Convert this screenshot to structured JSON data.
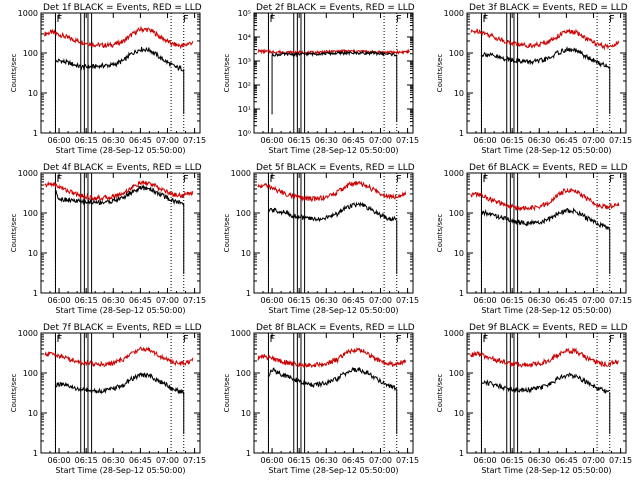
{
  "chart_data": [
    {
      "type": "line",
      "title": "Det 1f BLACK = Events, RED = LLD",
      "scale": "log",
      "ylim": [
        1,
        1000
      ],
      "yticks": [
        "1",
        "10",
        "100",
        "1000"
      ],
      "xticks": [
        "06:00",
        "06:15",
        "06:30",
        "06:45",
        "07:00",
        "07:15"
      ],
      "xlabel": "Start Time (28-Sep-12 05:50:00)",
      "ylabel": "Counts/sec",
      "grid": false,
      "series": [
        {
          "color": "#cc0000",
          "x": [
            2,
            6,
            10,
            16,
            22,
            28,
            34,
            40,
            46,
            50,
            55,
            60,
            66,
            72,
            78,
            84
          ],
          "y": [
            300,
            330,
            290,
            230,
            190,
            165,
            155,
            160,
            200,
            280,
            390,
            380,
            250,
            170,
            150,
            185
          ]
        },
        {
          "color": "#000000",
          "x": [
            8,
            10,
            16,
            22,
            28,
            34,
            40,
            46,
            50,
            55,
            60,
            66,
            72,
            76,
            79
          ],
          "y": [
            60,
            65,
            55,
            45,
            45,
            48,
            50,
            65,
            95,
            125,
            120,
            75,
            50,
            42,
            40
          ]
        }
      ],
      "vlines": [
        8,
        22,
        24,
        26,
        28
      ],
      "dotted": [
        8,
        72,
        79
      ],
      "flags": [
        {
          "x": 8,
          "t": "F"
        },
        {
          "x": 78,
          "t": "F"
        }
      ]
    },
    {
      "type": "line",
      "title": "Det 2f BLACK = Events, RED = LLD",
      "scale": "log",
      "ylim": [
        1,
        100000
      ],
      "yticks": [
        "10⁰",
        "10¹",
        "10²",
        "10³",
        "10⁴",
        "10⁵"
      ],
      "xticks": [
        "06:00",
        "06:15",
        "06:30",
        "06:45",
        "07:00",
        "07:15"
      ],
      "xlabel": "Start Time (28-Sep-12 05:50:00)",
      "ylabel": "Counts/sec",
      "grid": false,
      "series": [
        {
          "color": "#cc0000",
          "x": [
            2,
            10,
            20,
            30,
            40,
            50,
            60,
            70,
            80,
            86
          ],
          "y": [
            2600,
            2400,
            2300,
            2200,
            2400,
            2600,
            2500,
            2300,
            2300,
            2500
          ]
        },
        {
          "color": "#000000",
          "x": [
            10,
            16,
            22,
            28,
            34,
            40,
            46,
            50,
            55,
            60,
            66,
            72,
            76,
            79
          ],
          "y": [
            1800,
            1900,
            1900,
            1950,
            2000,
            2050,
            2100,
            2150,
            2150,
            2150,
            2100,
            2000,
            1900,
            1800
          ]
        }
      ],
      "vlines": [
        8,
        22,
        24,
        26,
        28
      ],
      "dotted": [
        8,
        72,
        79
      ],
      "flags": [
        {
          "x": 8,
          "t": "F"
        },
        {
          "x": 78,
          "t": "F"
        }
      ]
    },
    {
      "type": "line",
      "title": "Det 3f BLACK = Events, RED = LLD",
      "scale": "log",
      "ylim": [
        1,
        1000
      ],
      "yticks": [
        "1",
        "10",
        "100",
        "1000"
      ],
      "xticks": [
        "06:00",
        "06:15",
        "06:30",
        "06:45",
        "07:00",
        "07:15"
      ],
      "xlabel": "Start Time (28-Sep-12 05:50:00)",
      "ylabel": "Counts/sec",
      "grid": false,
      "series": [
        {
          "color": "#cc0000",
          "x": [
            2,
            6,
            10,
            16,
            22,
            28,
            34,
            40,
            46,
            50,
            55,
            60,
            66,
            72,
            78,
            84
          ],
          "y": [
            330,
            360,
            310,
            240,
            190,
            165,
            155,
            160,
            200,
            260,
            340,
            330,
            230,
            160,
            140,
            180
          ]
        },
        {
          "color": "#000000",
          "x": [
            8,
            10,
            16,
            22,
            28,
            34,
            40,
            46,
            50,
            55,
            60,
            66,
            72,
            76,
            79
          ],
          "y": [
            90,
            95,
            80,
            70,
            65,
            60,
            62,
            75,
            100,
            120,
            115,
            80,
            58,
            50,
            45
          ]
        }
      ],
      "vlines": [
        8,
        22,
        24,
        26,
        28
      ],
      "dotted": [
        8,
        72,
        79
      ],
      "flags": [
        {
          "x": 8,
          "t": "F"
        },
        {
          "x": 78,
          "t": "F"
        }
      ]
    },
    {
      "type": "line",
      "title": "Det 4f BLACK = Events, RED = LLD",
      "scale": "log",
      "ylim": [
        1,
        1000
      ],
      "yticks": [
        "1",
        "10",
        "100",
        "1000"
      ],
      "xticks": [
        "06:00",
        "06:15",
        "06:30",
        "06:45",
        "07:00",
        "07:15"
      ],
      "xlabel": "Start Time (28-Sep-12 05:50:00)",
      "ylabel": "Counts/sec",
      "grid": false,
      "series": [
        {
          "color": "#cc0000",
          "x": [
            2,
            6,
            10,
            16,
            22,
            28,
            34,
            40,
            46,
            50,
            55,
            60,
            66,
            72,
            78,
            84
          ],
          "y": [
            480,
            540,
            450,
            340,
            270,
            240,
            235,
            255,
            320,
            420,
            560,
            550,
            400,
            300,
            270,
            330
          ]
        },
        {
          "color": "#000000",
          "x": [
            8,
            10,
            16,
            22,
            28,
            34,
            40,
            46,
            50,
            55,
            60,
            66,
            72,
            76,
            79
          ],
          "y": [
            350,
            230,
            210,
            190,
            185,
            185,
            200,
            250,
            330,
            420,
            410,
            290,
            210,
            185,
            170
          ]
        }
      ],
      "vlines": [
        8,
        22,
        24,
        26,
        28
      ],
      "dotted": [
        8,
        72,
        79
      ],
      "flags": [
        {
          "x": 8,
          "t": "F"
        },
        {
          "x": 78,
          "t": "F"
        }
      ]
    },
    {
      "type": "line",
      "title": "Det 5f BLACK = Events, RED = LLD",
      "scale": "log",
      "ylim": [
        1,
        1000
      ],
      "yticks": [
        "1",
        "10",
        "100",
        "1000"
      ],
      "xticks": [
        "06:00",
        "06:15",
        "06:30",
        "06:45",
        "07:00",
        "07:15"
      ],
      "xlabel": "Start Time (28-Sep-12 05:50:00)",
      "ylabel": "Counts/sec",
      "grid": false,
      "series": [
        {
          "color": "#cc0000",
          "x": [
            2,
            6,
            10,
            16,
            22,
            28,
            34,
            40,
            46,
            50,
            55,
            60,
            66,
            72,
            78,
            84
          ],
          "y": [
            450,
            500,
            420,
            320,
            260,
            230,
            225,
            250,
            320,
            440,
            560,
            530,
            380,
            280,
            260,
            310
          ]
        },
        {
          "color": "#000000",
          "x": [
            8,
            10,
            16,
            22,
            28,
            34,
            40,
            46,
            50,
            55,
            60,
            66,
            72,
            76,
            79
          ],
          "y": [
            110,
            120,
            105,
            85,
            75,
            70,
            75,
            95,
            130,
            160,
            155,
            110,
            80,
            72,
            68
          ]
        }
      ],
      "vlines": [
        8,
        22,
        24,
        26,
        28
      ],
      "dotted": [
        8,
        72,
        79
      ],
      "flags": [
        {
          "x": 8,
          "t": "F"
        },
        {
          "x": 78,
          "t": "F"
        }
      ]
    },
    {
      "type": "line",
      "title": "Det 6f BLACK = Events, RED = LLD",
      "scale": "log",
      "ylim": [
        1,
        1000
      ],
      "yticks": [
        "1",
        "10",
        "100",
        "1000"
      ],
      "xticks": [
        "06:00",
        "06:15",
        "06:30",
        "06:45",
        "07:00",
        "07:15"
      ],
      "xlabel": "Start Time (28-Sep-12 05:50:00)",
      "ylabel": "Counts/sec",
      "grid": false,
      "series": [
        {
          "color": "#cc0000",
          "x": [
            2,
            6,
            10,
            16,
            22,
            28,
            34,
            40,
            46,
            50,
            55,
            60,
            66,
            72,
            78,
            84
          ],
          "y": [
            280,
            300,
            250,
            190,
            150,
            135,
            130,
            140,
            180,
            270,
            380,
            360,
            230,
            160,
            140,
            170
          ]
        },
        {
          "color": "#000000",
          "x": [
            8,
            10,
            16,
            22,
            28,
            34,
            40,
            46,
            50,
            55,
            60,
            66,
            72,
            76,
            79
          ],
          "y": [
            95,
            100,
            85,
            70,
            60,
            55,
            58,
            70,
            95,
            115,
            110,
            75,
            55,
            45,
            40
          ]
        }
      ],
      "vlines": [
        8,
        22,
        24,
        26,
        28
      ],
      "dotted": [
        8,
        72,
        79
      ],
      "flags": [
        {
          "x": 8,
          "t": "F"
        },
        {
          "x": 78,
          "t": "F"
        }
      ]
    },
    {
      "type": "line",
      "title": "Det 7f BLACK = Events, RED = LLD",
      "scale": "log",
      "ylim": [
        1,
        1000
      ],
      "yticks": [
        "1",
        "10",
        "100",
        "1000"
      ],
      "xticks": [
        "06:00",
        "06:15",
        "06:30",
        "06:45",
        "07:00",
        "07:15"
      ],
      "xlabel": "Start Time (28-Sep-12 05:50:00)",
      "ylabel": "Counts/sec",
      "grid": false,
      "series": [
        {
          "color": "#cc0000",
          "x": [
            2,
            6,
            10,
            16,
            22,
            28,
            34,
            40,
            46,
            50,
            55,
            60,
            66,
            72,
            78,
            84
          ],
          "y": [
            280,
            310,
            270,
            220,
            185,
            170,
            165,
            175,
            220,
            300,
            400,
            390,
            260,
            190,
            170,
            210
          ]
        },
        {
          "color": "#000000",
          "x": [
            8,
            10,
            16,
            22,
            28,
            34,
            40,
            46,
            50,
            55,
            60,
            66,
            72,
            76,
            79
          ],
          "y": [
            50,
            52,
            45,
            38,
            35,
            36,
            40,
            50,
            70,
            90,
            85,
            60,
            42,
            36,
            33
          ]
        }
      ],
      "vlines": [
        8,
        22,
        24,
        26,
        28
      ],
      "dotted": [
        8,
        72,
        79
      ],
      "flags": [
        {
          "x": 8,
          "t": "F"
        },
        {
          "x": 78,
          "t": "F"
        }
      ]
    },
    {
      "type": "line",
      "title": "Det 8f BLACK = Events, RED = LLD",
      "scale": "log",
      "ylim": [
        1,
        1000
      ],
      "yticks": [
        "1",
        "10",
        "100",
        "1000"
      ],
      "xticks": [
        "06:00",
        "06:15",
        "06:30",
        "06:45",
        "07:00",
        "07:15"
      ],
      "xlabel": "Start Time (28-Sep-12 05:50:00)",
      "ylabel": "Counts/sec",
      "grid": false,
      "series": [
        {
          "color": "#cc0000",
          "x": [
            2,
            6,
            10,
            16,
            22,
            28,
            34,
            40,
            46,
            50,
            55,
            60,
            66,
            72,
            78,
            84
          ],
          "y": [
            240,
            260,
            230,
            190,
            170,
            160,
            160,
            170,
            210,
            290,
            380,
            360,
            240,
            180,
            165,
            200
          ]
        },
        {
          "color": "#000000",
          "x": [
            8,
            10,
            16,
            22,
            28,
            34,
            40,
            46,
            50,
            55,
            60,
            66,
            72,
            76,
            79
          ],
          "y": [
            85,
            120,
            90,
            70,
            55,
            50,
            55,
            70,
            95,
            120,
            115,
            80,
            55,
            45,
            40
          ]
        }
      ],
      "vlines": [
        8,
        22,
        24,
        26,
        28
      ],
      "dotted": [
        8,
        72,
        79
      ],
      "flags": [
        {
          "x": 8,
          "t": "F"
        },
        {
          "x": 78,
          "t": "F"
        }
      ]
    },
    {
      "type": "line",
      "title": "Det 9f BLACK = Events, RED = LLD",
      "scale": "log",
      "ylim": [
        1,
        1000
      ],
      "yticks": [
        "1",
        "10",
        "100",
        "1000"
      ],
      "xticks": [
        "06:00",
        "06:15",
        "06:30",
        "06:45",
        "07:00",
        "07:15"
      ],
      "xlabel": "Start Time (28-Sep-12 05:50:00)",
      "ylabel": "Counts/sec",
      "grid": false,
      "series": [
        {
          "color": "#cc0000",
          "x": [
            2,
            6,
            10,
            16,
            22,
            28,
            34,
            40,
            46,
            50,
            55,
            60,
            66,
            72,
            78,
            84
          ],
          "y": [
            280,
            300,
            260,
            210,
            180,
            165,
            160,
            170,
            210,
            280,
            360,
            350,
            240,
            180,
            165,
            200
          ]
        },
        {
          "color": "#000000",
          "x": [
            8,
            10,
            16,
            22,
            28,
            34,
            40,
            46,
            50,
            55,
            60,
            66,
            72,
            76,
            79
          ],
          "y": [
            55,
            60,
            50,
            42,
            38,
            38,
            42,
            52,
            70,
            88,
            85,
            60,
            42,
            36,
            33
          ]
        }
      ],
      "vlines": [
        8,
        22,
        24,
        26,
        28
      ],
      "dotted": [
        8,
        72,
        79
      ],
      "flags": [
        {
          "x": 8,
          "t": "F"
        },
        {
          "x": 78,
          "t": "F"
        }
      ]
    }
  ]
}
